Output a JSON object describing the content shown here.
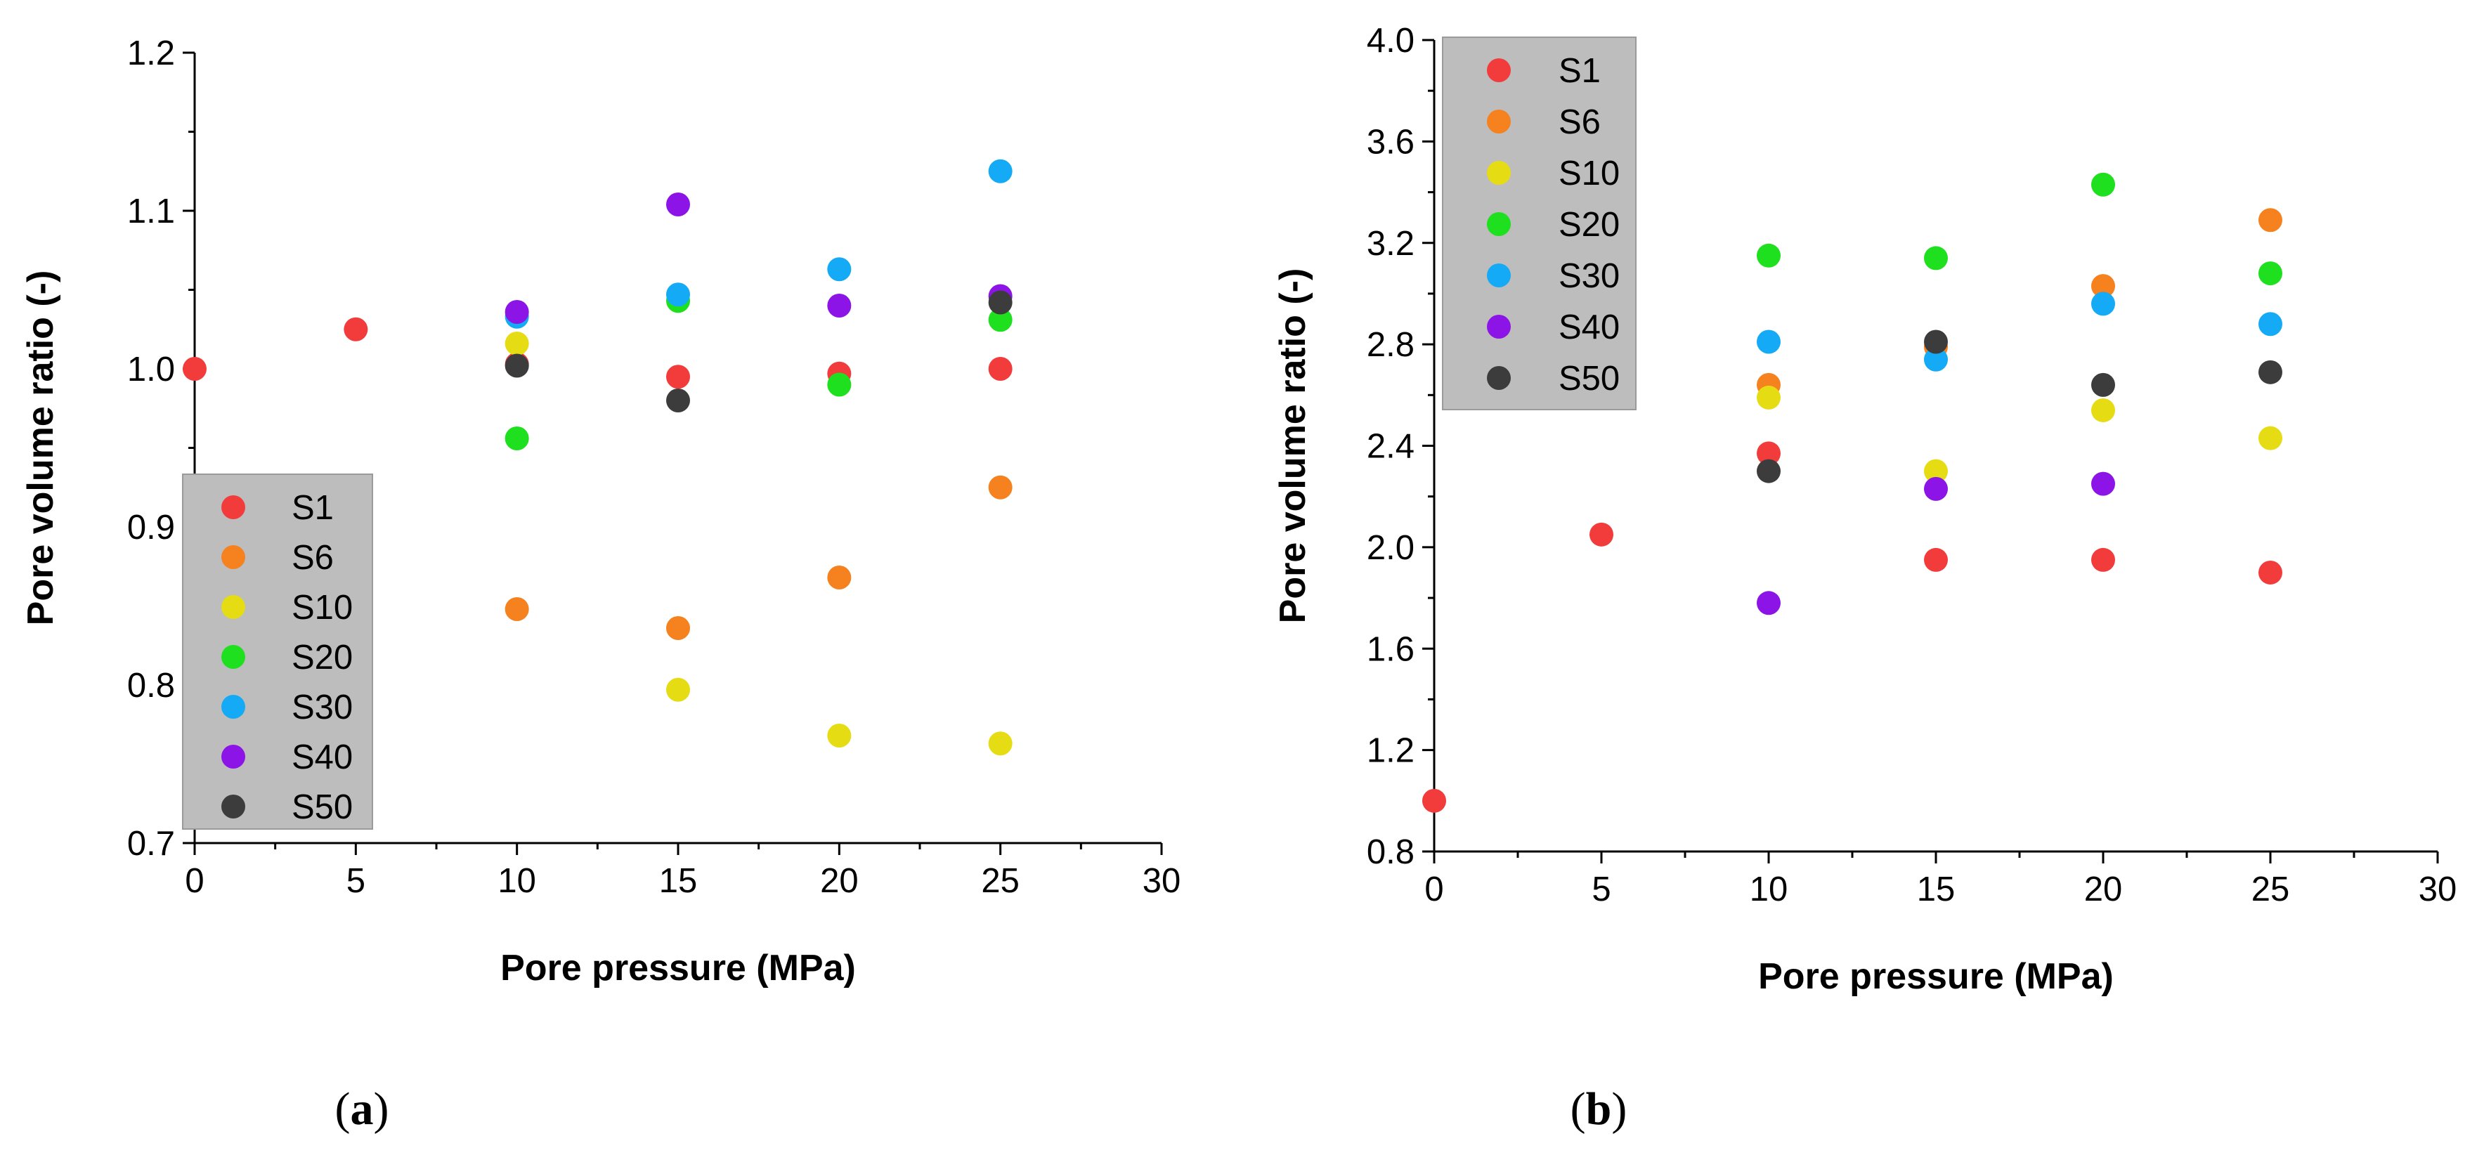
{
  "colors": {
    "S1": "#f23c3c",
    "S6": "#f5821e",
    "S10": "#e6dc14",
    "S20": "#1ee01e",
    "S30": "#14aaf5",
    "S40": "#8c14e6",
    "S50": "#3c3c3c",
    "legend_bg": "#bdbdbd"
  },
  "chart_data": [
    {
      "id": "a",
      "type": "scatter",
      "caption_open": "(",
      "caption_letter": "a",
      "caption_close": ")",
      "xlabel": "Pore pressure (MPa)",
      "ylabel": "Pore volume ratio (-)",
      "xlim": [
        0,
        30
      ],
      "ylim": [
        0.7,
        1.2
      ],
      "xticks": [
        "0",
        "5",
        "10",
        "15",
        "20",
        "25",
        "30"
      ],
      "yticks": [
        "0.7",
        "0.8",
        "0.9",
        "1.0",
        "1.1",
        "1.2"
      ],
      "legend_position": "bottom-left",
      "series": [
        {
          "name": "S1",
          "x": [
            0,
            5,
            10,
            15,
            20,
            25
          ],
          "y": [
            1.0,
            1.025,
            1.003,
            0.995,
            0.997,
            1.0
          ]
        },
        {
          "name": "S6",
          "x": [
            10,
            15,
            20,
            25
          ],
          "y": [
            0.848,
            0.836,
            0.868,
            0.925
          ]
        },
        {
          "name": "S10",
          "x": [
            10,
            15,
            20,
            25
          ],
          "y": [
            1.016,
            0.797,
            0.768,
            0.763
          ]
        },
        {
          "name": "S20",
          "x": [
            10,
            15,
            20,
            25
          ],
          "y": [
            0.956,
            1.043,
            0.99,
            1.031
          ]
        },
        {
          "name": "S30",
          "x": [
            10,
            15,
            20,
            25
          ],
          "y": [
            1.033,
            1.047,
            1.063,
            1.125
          ]
        },
        {
          "name": "S40",
          "x": [
            10,
            15,
            20,
            25
          ],
          "y": [
            1.036,
            1.104,
            1.04,
            1.046
          ]
        },
        {
          "name": "S50",
          "x": [
            10,
            15,
            25
          ],
          "y": [
            1.002,
            0.98,
            1.042
          ]
        }
      ]
    },
    {
      "id": "b",
      "type": "scatter",
      "caption_open": "(",
      "caption_letter": "b",
      "caption_close": ")",
      "xlabel": "Pore pressure (MPa)",
      "ylabel": "Pore volume ratio (-)",
      "xlim": [
        0,
        30
      ],
      "ylim": [
        0.8,
        4.0
      ],
      "xticks": [
        "0",
        "5",
        "10",
        "15",
        "20",
        "25",
        "30"
      ],
      "yticks": [
        "0.8",
        "1.2",
        "1.6",
        "2.0",
        "2.4",
        "2.8",
        "3.2",
        "3.6",
        "4.0"
      ],
      "legend_position": "top-left",
      "series": [
        {
          "name": "S1",
          "x": [
            0,
            5,
            10,
            15,
            20,
            25
          ],
          "y": [
            1.0,
            2.05,
            2.37,
            1.95,
            1.95,
            1.9
          ]
        },
        {
          "name": "S6",
          "x": [
            10,
            15,
            20,
            25
          ],
          "y": [
            2.64,
            2.79,
            3.03,
            3.29
          ]
        },
        {
          "name": "S10",
          "x": [
            10,
            15,
            20,
            25
          ],
          "y": [
            2.59,
            2.3,
            2.54,
            2.43
          ]
        },
        {
          "name": "S20",
          "x": [
            10,
            15,
            20,
            25
          ],
          "y": [
            3.15,
            3.14,
            3.43,
            3.08
          ]
        },
        {
          "name": "S30",
          "x": [
            10,
            15,
            20,
            25
          ],
          "y": [
            2.81,
            2.74,
            2.96,
            2.88
          ]
        },
        {
          "name": "S40",
          "x": [
            10,
            15,
            20
          ],
          "y": [
            1.78,
            2.23,
            2.25
          ]
        },
        {
          "name": "S50",
          "x": [
            10,
            15,
            20,
            25
          ],
          "y": [
            2.3,
            2.81,
            2.64,
            2.69
          ]
        }
      ]
    }
  ]
}
